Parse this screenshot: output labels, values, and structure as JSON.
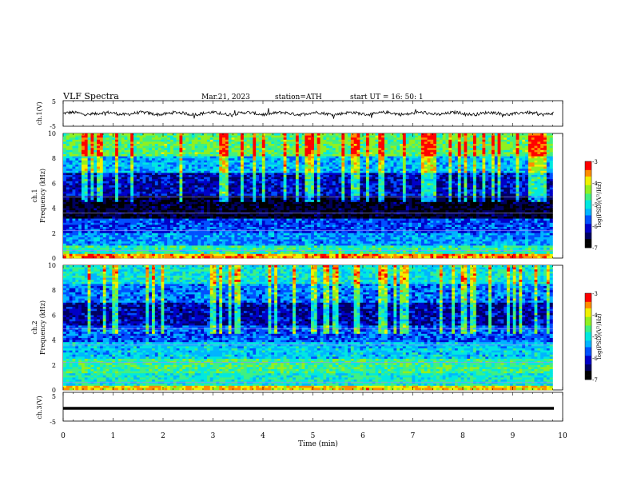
{
  "header": {
    "title": "VLF  Spectra",
    "date": "Mar.21, 2023",
    "station": "station=ATH",
    "start_ut": "start  UT  =    16: 50: 1"
  },
  "colormap": [
    "#000000",
    "#000060",
    "#0000c8",
    "#0050ff",
    "#00b4ff",
    "#00e8e0",
    "#40f080",
    "#90f020",
    "#f0f000",
    "#ff8c00",
    "#ff0000",
    "#ffffff"
  ],
  "chart_data": [
    {
      "type": "line",
      "ylabel": "ch.1(V)",
      "ylim": [
        -5,
        5
      ],
      "yticks": [
        "5",
        "-5"
      ],
      "xlim": [
        0,
        10
      ],
      "description_of_values": "waveform oscillating around 0 V over full time range"
    },
    {
      "type": "heatmap",
      "ylabel": "ch.1\nFrequency  (kHz)",
      "ylabel_line1": "ch.1",
      "ylabel_line2": "Frequency  (kHz)",
      "ylim": [
        0,
        10
      ],
      "yticks": [
        "0",
        "2",
        "4",
        "6",
        "8",
        "10"
      ],
      "xlim": [
        0,
        9.8
      ],
      "colorbar": {
        "label": "log(PSD)(V²/Hz)",
        "range": [
          -7,
          -3
        ],
        "ticks": [
          "-3",
          "-4",
          "-5",
          "-6",
          "-7"
        ]
      },
      "bands_kHz": [
        {
          "from": 0,
          "to": 0.3,
          "level": 0.85
        },
        {
          "from": 0.3,
          "to": 1.0,
          "level": 0.55
        },
        {
          "from": 1.0,
          "to": 2.0,
          "level": 0.38
        },
        {
          "from": 2.0,
          "to": 3.2,
          "level": 0.3
        },
        {
          "from": 3.2,
          "to": 5.0,
          "level": 0.08
        },
        {
          "from": 5.0,
          "to": 6.8,
          "level": 0.22
        },
        {
          "from": 6.8,
          "to": 8.2,
          "level": 0.42
        },
        {
          "from": 8.2,
          "to": 10.0,
          "level": 0.62
        }
      ]
    },
    {
      "type": "heatmap",
      "ylabel_line1": "ch.2",
      "ylabel_line2": "Frequency  (kHz)",
      "ylim": [
        0,
        10
      ],
      "yticks": [
        "0",
        "2",
        "4",
        "6",
        "8",
        "10"
      ],
      "xlim": [
        0,
        9.8
      ],
      "colorbar": {
        "label": "log(PSD)(V²/Hz)",
        "range": [
          -7,
          -3
        ],
        "ticks": [
          "-3",
          "-4",
          "-5",
          "-6",
          "-7"
        ]
      },
      "bands_kHz": [
        {
          "from": 0,
          "to": 0.3,
          "level": 0.8
        },
        {
          "from": 0.3,
          "to": 1.3,
          "level": 0.52
        },
        {
          "from": 1.3,
          "to": 2.5,
          "level": 0.58
        },
        {
          "from": 2.5,
          "to": 3.8,
          "level": 0.45
        },
        {
          "from": 3.8,
          "to": 5.2,
          "level": 0.32
        },
        {
          "from": 5.2,
          "to": 7.0,
          "level": 0.2
        },
        {
          "from": 7.0,
          "to": 8.5,
          "level": 0.35
        },
        {
          "from": 8.5,
          "to": 10.0,
          "level": 0.5
        }
      ]
    },
    {
      "type": "line",
      "ylabel": "ch.3(V)",
      "ylim": [
        -5,
        5
      ],
      "yticks": [
        "5",
        "-5"
      ],
      "xlim": [
        0,
        10
      ],
      "description_of_values": "flat thick line slightly below 0 V"
    }
  ],
  "xaxis": {
    "label": "Time  (min)",
    "ticks": [
      "0",
      "1",
      "2",
      "3",
      "4",
      "5",
      "6",
      "7",
      "8",
      "9",
      "10"
    ]
  }
}
